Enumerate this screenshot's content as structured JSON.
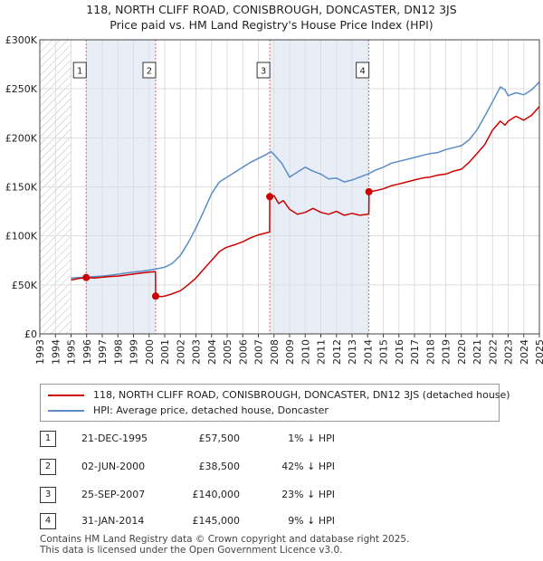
{
  "title_line1": "118, NORTH CLIFF ROAD, CONISBROUGH, DONCASTER, DN12 3JS",
  "title_line2": "Price paid vs. HM Land Registry's House Price Index (HPI)",
  "colors": {
    "property": "#cc0000",
    "hpi": "#5b8cc8",
    "band": "#e8eef8",
    "marker_line": "#e06666"
  },
  "chart_data": {
    "type": "line",
    "xlim": [
      1993,
      2025
    ],
    "ylim": [
      0,
      300000
    ],
    "x_ticks": [
      "1993",
      "1994",
      "1995",
      "1996",
      "1997",
      "1998",
      "1999",
      "2000",
      "2001",
      "2002",
      "2003",
      "2004",
      "2005",
      "2006",
      "2007",
      "2008",
      "2009",
      "2010",
      "2011",
      "2012",
      "2013",
      "2014",
      "2015",
      "2016",
      "2017",
      "2018",
      "2019",
      "2020",
      "2021",
      "2022",
      "2023",
      "2024",
      "2025"
    ],
    "y_ticks": [
      {
        "value": 0,
        "label": "£0"
      },
      {
        "value": 50000,
        "label": "£50K"
      },
      {
        "value": 100000,
        "label": "£100K"
      },
      {
        "value": 150000,
        "label": "£150K"
      },
      {
        "value": 200000,
        "label": "£200K"
      },
      {
        "value": 250000,
        "label": "£250K"
      },
      {
        "value": 300000,
        "label": "£300K"
      }
    ],
    "grid": true,
    "hatched_before": 1995,
    "series": [
      {
        "name": "118, NORTH CLIFF ROAD, CONISBROUGH, DONCASTER, DN12 3JS (detached house)",
        "color": "#cc0000",
        "points": [
          [
            1995.0,
            55000
          ],
          [
            1995.5,
            56500
          ],
          [
            1995.97,
            57500
          ],
          [
            1996.5,
            57000
          ],
          [
            1997.0,
            57800
          ],
          [
            1997.5,
            58500
          ],
          [
            1998.0,
            59000
          ],
          [
            1998.5,
            60000
          ],
          [
            1999.0,
            61000
          ],
          [
            1999.5,
            62000
          ],
          [
            2000.0,
            63000
          ],
          [
            2000.41,
            63500
          ],
          [
            2000.42,
            38500
          ],
          [
            2000.8,
            38000
          ],
          [
            2001.0,
            38500
          ],
          [
            2001.5,
            41000
          ],
          [
            2002.0,
            44000
          ],
          [
            2002.5,
            50000
          ],
          [
            2003.0,
            57000
          ],
          [
            2003.5,
            66000
          ],
          [
            2004.0,
            75000
          ],
          [
            2004.5,
            84000
          ],
          [
            2004.9,
            88000
          ],
          [
            2005.5,
            91000
          ],
          [
            2006.0,
            94000
          ],
          [
            2006.5,
            98000
          ],
          [
            2007.0,
            101000
          ],
          [
            2007.5,
            103000
          ],
          [
            2007.72,
            104000
          ],
          [
            2007.73,
            140000
          ],
          [
            2008.0,
            141000
          ],
          [
            2008.3,
            133000
          ],
          [
            2008.6,
            136000
          ],
          [
            2009.0,
            127000
          ],
          [
            2009.5,
            122000
          ],
          [
            2010.0,
            124000
          ],
          [
            2010.5,
            128000
          ],
          [
            2011.0,
            124000
          ],
          [
            2011.5,
            122000
          ],
          [
            2012.0,
            125000
          ],
          [
            2012.5,
            121000
          ],
          [
            2013.0,
            123000
          ],
          [
            2013.5,
            121000
          ],
          [
            2014.0,
            122000
          ],
          [
            2014.08,
            123000
          ],
          [
            2014.09,
            145000
          ],
          [
            2014.5,
            146000
          ],
          [
            2015.0,
            148000
          ],
          [
            2015.5,
            151000
          ],
          [
            2016.0,
            153000
          ],
          [
            2016.5,
            155000
          ],
          [
            2017.0,
            157000
          ],
          [
            2017.5,
            159000
          ],
          [
            2018.0,
            160000
          ],
          [
            2018.5,
            162000
          ],
          [
            2019.0,
            163000
          ],
          [
            2019.5,
            166000
          ],
          [
            2020.0,
            168000
          ],
          [
            2020.5,
            175000
          ],
          [
            2021.0,
            184000
          ],
          [
            2021.5,
            193000
          ],
          [
            2022.0,
            208000
          ],
          [
            2022.5,
            217000
          ],
          [
            2022.8,
            213000
          ],
          [
            2023.0,
            217000
          ],
          [
            2023.5,
            222000
          ],
          [
            2024.0,
            218000
          ],
          [
            2024.5,
            223000
          ],
          [
            2025.0,
            232000
          ]
        ]
      },
      {
        "name": "HPI: Average price, detached house, Doncaster",
        "color": "#5b8cc8",
        "points": [
          [
            1995.0,
            57000
          ],
          [
            1995.5,
            57500
          ],
          [
            1996.0,
            58000
          ],
          [
            1996.5,
            58500
          ],
          [
            1997.0,
            59000
          ],
          [
            1997.5,
            59800
          ],
          [
            1998.0,
            60800
          ],
          [
            1998.5,
            62000
          ],
          [
            1999.0,
            63000
          ],
          [
            1999.5,
            64000
          ],
          [
            2000.0,
            65000
          ],
          [
            2000.5,
            66500
          ],
          [
            2001.0,
            68000
          ],
          [
            2001.5,
            72000
          ],
          [
            2002.0,
            80000
          ],
          [
            2002.5,
            93000
          ],
          [
            2003.0,
            108000
          ],
          [
            2003.5,
            125000
          ],
          [
            2004.0,
            143000
          ],
          [
            2004.5,
            155000
          ],
          [
            2005.0,
            160000
          ],
          [
            2005.5,
            165000
          ],
          [
            2006.0,
            170000
          ],
          [
            2006.5,
            175000
          ],
          [
            2007.0,
            179000
          ],
          [
            2007.5,
            183000
          ],
          [
            2007.8,
            186000
          ],
          [
            2008.0,
            183000
          ],
          [
            2008.5,
            174000
          ],
          [
            2009.0,
            160000
          ],
          [
            2009.5,
            165000
          ],
          [
            2010.0,
            170000
          ],
          [
            2010.5,
            166000
          ],
          [
            2011.0,
            163000
          ],
          [
            2011.5,
            158000
          ],
          [
            2012.0,
            159000
          ],
          [
            2012.5,
            155000
          ],
          [
            2013.0,
            157000
          ],
          [
            2013.5,
            160000
          ],
          [
            2014.0,
            163000
          ],
          [
            2014.5,
            167000
          ],
          [
            2015.0,
            170000
          ],
          [
            2015.5,
            174000
          ],
          [
            2016.0,
            176000
          ],
          [
            2016.5,
            178000
          ],
          [
            2017.0,
            180000
          ],
          [
            2017.5,
            182000
          ],
          [
            2018.0,
            184000
          ],
          [
            2018.5,
            185000
          ],
          [
            2019.0,
            188000
          ],
          [
            2019.5,
            190000
          ],
          [
            2020.0,
            192000
          ],
          [
            2020.5,
            198000
          ],
          [
            2021.0,
            208000
          ],
          [
            2021.5,
            222000
          ],
          [
            2022.0,
            237000
          ],
          [
            2022.5,
            252000
          ],
          [
            2022.8,
            249000
          ],
          [
            2023.0,
            243000
          ],
          [
            2023.5,
            246000
          ],
          [
            2024.0,
            244000
          ],
          [
            2024.5,
            249000
          ],
          [
            2025.0,
            257000
          ]
        ]
      }
    ],
    "transactions": [
      {
        "num": "1",
        "x": 1995.97,
        "y": 57500,
        "date": "21-DEC-1995",
        "price": "£57,500",
        "diff": "1% ↓ HPI"
      },
      {
        "num": "2",
        "x": 2000.42,
        "y": 38500,
        "date": "02-JUN-2000",
        "price": "£38,500",
        "diff": "42% ↓ HPI"
      },
      {
        "num": "3",
        "x": 2007.73,
        "y": 140000,
        "date": "25-SEP-2007",
        "price": "£140,000",
        "diff": "23% ↓ HPI"
      },
      {
        "num": "4",
        "x": 2014.08,
        "y": 145000,
        "date": "31-JAN-2014",
        "price": "£145,000",
        "diff": "9% ↓ HPI"
      }
    ]
  },
  "legend": {
    "property_label": "118, NORTH CLIFF ROAD, CONISBROUGH, DONCASTER, DN12 3JS (detached house)",
    "hpi_label": "HPI: Average price, detached house, Doncaster"
  },
  "footer": {
    "line1": "Contains HM Land Registry data © Crown copyright and database right 2025.",
    "line2": "This data is licensed under the Open Government Licence v3.0."
  }
}
